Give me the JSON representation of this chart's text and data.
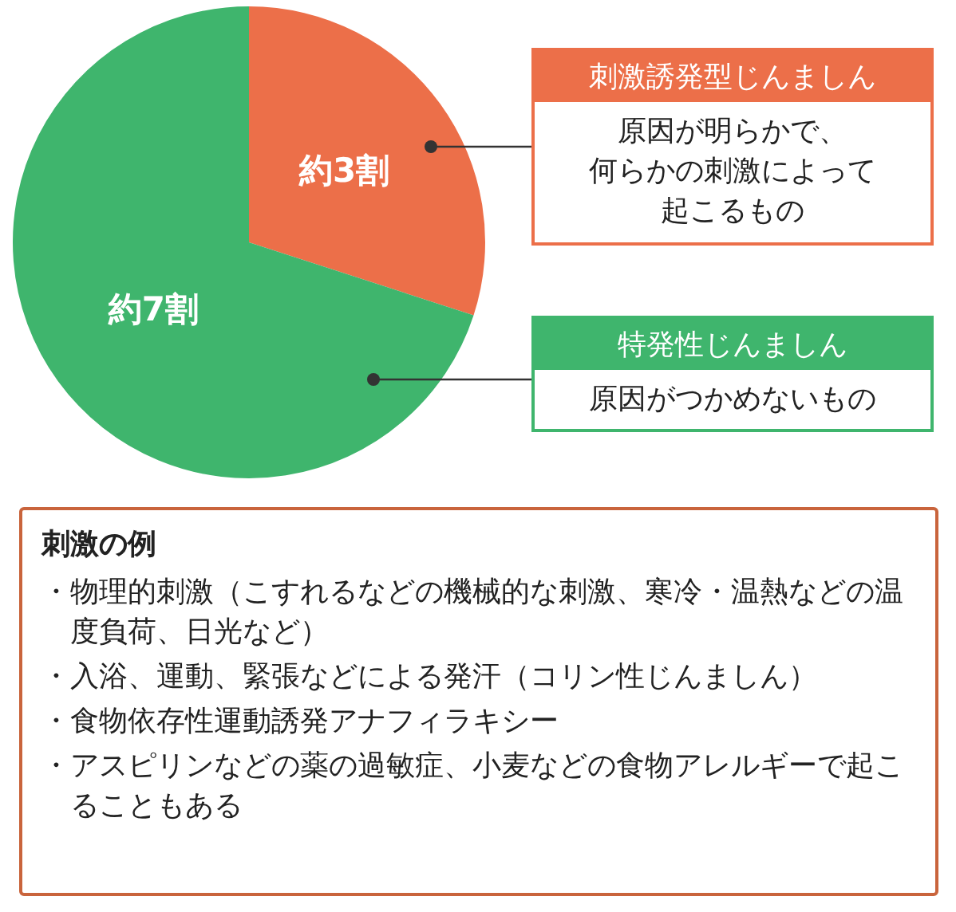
{
  "chart_data": {
    "type": "pie",
    "categories": [
      "刺激誘発型じんましん",
      "特発性じんましん"
    ],
    "values": [
      30,
      70
    ],
    "colors": [
      "#ec6f49",
      "#3fb56d"
    ],
    "value_labels": [
      "約3割",
      "約7割"
    ],
    "annotations": [
      "原因が明らかで、何らかの刺激によって起こるもの",
      "原因がつかめないもの",
      "刺激の例",
      "・物理的刺激（こすれるなどの機械的な刺激、寒冷・温熱などの温度負荷、日光など）",
      "・入浴、運動、緊張などによる発汗（コリン性じんましん）",
      "・食物依存性運動誘発アナフィラキシー",
      "・アスピリンなどの薬の過敏症、小麦などの食物アレルギーで起こることもある"
    ]
  }
}
